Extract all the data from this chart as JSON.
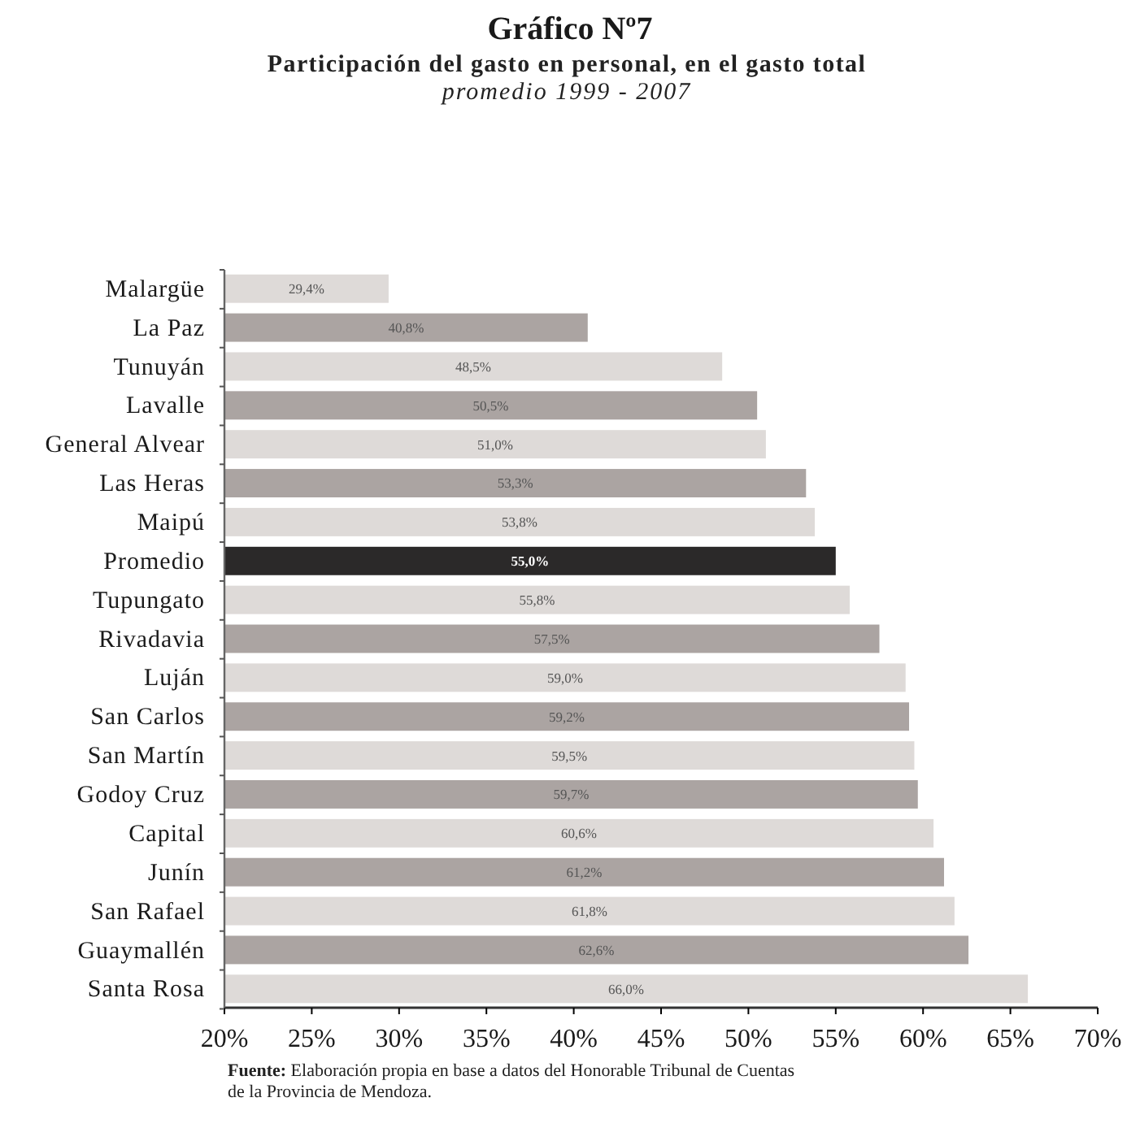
{
  "chart_data": {
    "type": "bar",
    "orientation": "horizontal",
    "title": "Gráfico Nº7",
    "subtitle": "Participación del gasto en personal, en el gasto total\npromedio 1999 - 2007",
    "categories": [
      "Malargüe",
      "La Paz",
      "Tunuyán",
      "Lavalle",
      "General Alvear",
      "Las Heras",
      "Maipú",
      "Promedio",
      "Tupungato",
      "Rivadavia",
      "Luján",
      "San Carlos",
      "San Martín",
      "Godoy Cruz",
      "Capital",
      "Junín",
      "San Rafael",
      "Guaymallén",
      "Santa Rosa"
    ],
    "values": [
      29.4,
      40.8,
      48.5,
      50.5,
      51.0,
      53.3,
      53.8,
      55.0,
      55.8,
      57.5,
      59.0,
      59.2,
      59.5,
      59.7,
      60.6,
      61.2,
      61.8,
      62.6,
      66.0
    ],
    "value_labels": [
      "29,4%",
      "40,8%",
      "48,5%",
      "50,5%",
      "51,0%",
      "53,3%",
      "53,8%",
      "55,0%",
      "55,8%",
      "57,5%",
      "59,0%",
      "59,2%",
      "59,5%",
      "59,7%",
      "60,6%",
      "61,2%",
      "61,8%",
      "62,6%",
      "66,0%"
    ],
    "colors": [
      "#dedad8",
      "#aba4a2",
      "#dedad8",
      "#aba4a2",
      "#dedad8",
      "#aba4a2",
      "#dedad8",
      "#2b2929",
      "#dedad8",
      "#aba4a2",
      "#dedad8",
      "#aba4a2",
      "#dedad8",
      "#aba4a2",
      "#dedad8",
      "#aba4a2",
      "#dedad8",
      "#aba4a2",
      "#dedad8"
    ],
    "xlim": [
      20,
      70
    ],
    "xticks": [
      {
        "value": 20,
        "label": "20%"
      },
      {
        "value": 25,
        "label": "25%"
      },
      {
        "value": 30,
        "label": "30%"
      },
      {
        "value": 35,
        "label": "35%"
      },
      {
        "value": 40,
        "label": "40%"
      },
      {
        "value": 45,
        "label": "45%"
      },
      {
        "value": 50,
        "label": "50%"
      },
      {
        "value": 55,
        "label": "55%"
      },
      {
        "value": 60,
        "label": "60%"
      },
      {
        "value": 65,
        "label": "65%"
      },
      {
        "value": 70,
        "label": "70%"
      }
    ],
    "annotations": [
      "Fuente: Elaboración propia en base a datos del Honorable Tribunal de Cuentas de la Provincia de Mendoza."
    ]
  }
}
